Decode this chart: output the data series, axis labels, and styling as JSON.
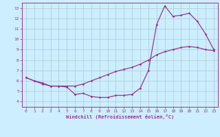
{
  "xlabel": "Windchill (Refroidissement éolien,°C)",
  "bg_color": "#cceeff",
  "grid_color": "#aacccc",
  "line_color": "#993399",
  "xlim": [
    -0.5,
    23.5
  ],
  "ylim": [
    3.5,
    13.5
  ],
  "xticks": [
    0,
    1,
    2,
    3,
    4,
    5,
    6,
    7,
    8,
    9,
    10,
    11,
    12,
    13,
    14,
    15,
    16,
    17,
    18,
    19,
    20,
    21,
    22,
    23
  ],
  "yticks": [
    4,
    5,
    6,
    7,
    8,
    9,
    10,
    11,
    12,
    13
  ],
  "curve1_x": [
    0,
    1,
    2,
    3,
    4,
    5,
    6,
    7,
    8,
    9,
    10,
    11,
    12,
    13,
    14,
    15,
    16,
    17,
    18,
    19,
    20,
    21,
    22,
    23
  ],
  "curve1_y": [
    6.3,
    6.0,
    5.7,
    5.5,
    5.5,
    5.4,
    4.7,
    4.8,
    4.5,
    4.4,
    4.4,
    4.6,
    4.6,
    4.7,
    5.3,
    7.0,
    11.4,
    13.2,
    12.2,
    12.3,
    12.5,
    11.7,
    10.5,
    9.0
  ],
  "curve2_x": [
    0,
    1,
    2,
    3,
    4,
    5,
    6,
    7,
    8,
    9,
    10,
    11,
    12,
    13,
    14,
    15,
    16,
    17,
    18,
    19,
    20,
    21,
    22,
    23
  ],
  "curve2_y": [
    6.3,
    6.0,
    5.8,
    5.5,
    5.5,
    5.5,
    5.5,
    5.7,
    6.0,
    6.3,
    6.6,
    6.9,
    7.1,
    7.3,
    7.6,
    8.0,
    8.5,
    8.8,
    9.0,
    9.2,
    9.3,
    9.2,
    9.0,
    8.9
  ]
}
